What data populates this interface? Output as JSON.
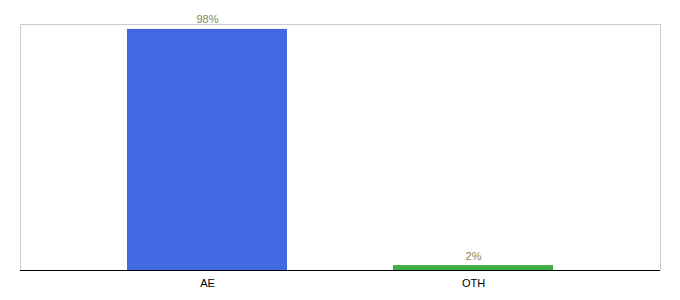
{
  "chart_data": {
    "type": "bar",
    "categories": [
      "AE",
      "OTH"
    ],
    "values": [
      98,
      2
    ],
    "colors": [
      "#4169e1",
      "#3cb043"
    ],
    "ylim": [
      0,
      100
    ],
    "data_labels": true,
    "value_labels": [
      "98%",
      "2%"
    ],
    "tick_labels": "x"
  }
}
